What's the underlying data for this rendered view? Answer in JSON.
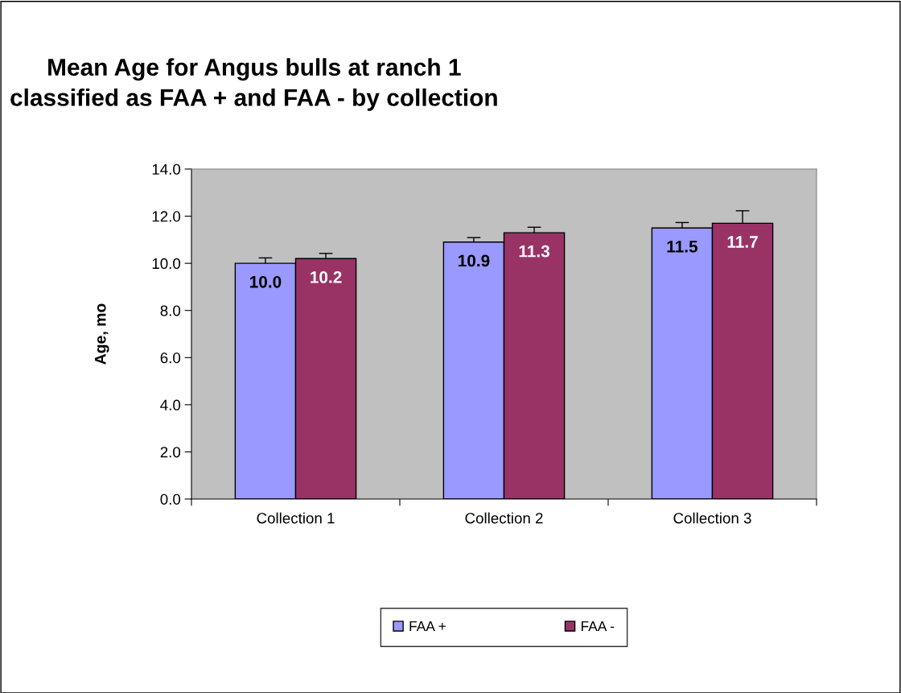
{
  "chart_data": {
    "type": "bar",
    "title": "Mean Age for Angus bulls at ranch 1\nclassified as FAA + and FAA - by collection",
    "ylabel": "Age, mo",
    "categories": [
      "Collection 1",
      "Collection 2",
      "Collection 3"
    ],
    "series": [
      {
        "name": "FAA +",
        "color": "#9999ff",
        "values": [
          10.0,
          10.9,
          11.5
        ],
        "errors": [
          0.23,
          0.19,
          0.23
        ],
        "value_labels": [
          "10.0",
          "10.9",
          "11.5"
        ]
      },
      {
        "name": "FAA -",
        "color": "#993366",
        "values": [
          10.2,
          11.3,
          11.7
        ],
        "errors": [
          0.22,
          0.23,
          0.53
        ],
        "value_labels": [
          "10.2",
          "11.3",
          "11.7"
        ]
      }
    ],
    "ylim": [
      0,
      14
    ],
    "yticks": [
      {
        "value": 0,
        "label": "0.0"
      },
      {
        "value": 2,
        "label": "2.0"
      },
      {
        "value": 4,
        "label": "4.0"
      },
      {
        "value": 6,
        "label": "6.0"
      },
      {
        "value": 8,
        "label": "8.0"
      },
      {
        "value": 10,
        "label": "10.0"
      },
      {
        "value": 12,
        "label": "12.0"
      },
      {
        "value": 14,
        "label": "14.0"
      }
    ],
    "grid": false,
    "legend": "bottom"
  }
}
